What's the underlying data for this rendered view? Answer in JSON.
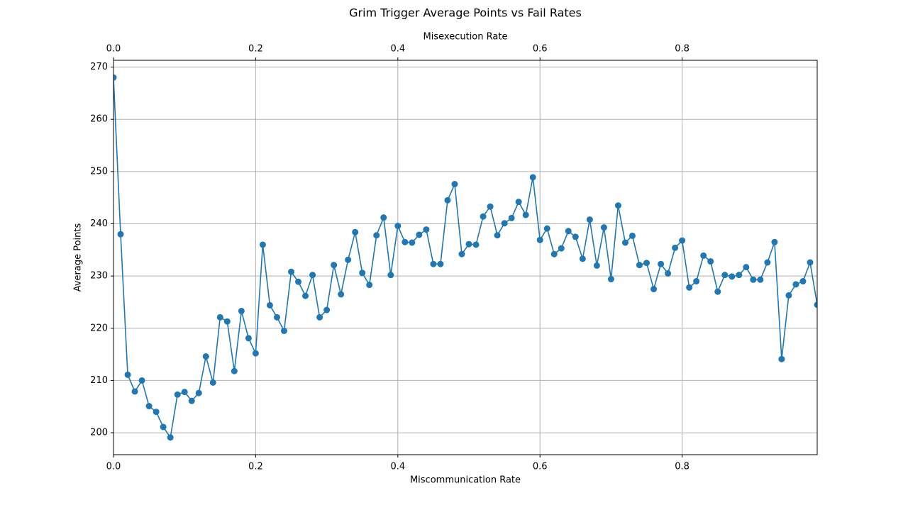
{
  "chart_data": {
    "type": "line",
    "title": "Grim Trigger Average Points vs Fail Rates",
    "xlabel": "Miscommunication Rate",
    "x2label": "Misexecution Rate",
    "ylabel": "Average Points",
    "xlim": [
      0.0,
      0.99
    ],
    "ylim": [
      195.8,
      271.3
    ],
    "x_ticks": [
      0.0,
      0.2,
      0.4,
      0.6,
      0.8
    ],
    "x_tick_labels": [
      "0.0",
      "0.2",
      "0.4",
      "0.6",
      "0.8"
    ],
    "x2_ticks": [
      0.0,
      0.2,
      0.4,
      0.6,
      0.8
    ],
    "x2_tick_labels": [
      "0.0",
      "0.2",
      "0.4",
      "0.6",
      "0.8"
    ],
    "y_ticks": [
      200,
      210,
      220,
      230,
      240,
      250,
      260,
      270
    ],
    "y_tick_labels": [
      "200",
      "210",
      "220",
      "230",
      "240",
      "250",
      "260",
      "270"
    ],
    "grid": true,
    "series": [
      {
        "color": "#1f77b4",
        "marker": "circle",
        "x": [
          0.0,
          0.01,
          0.02,
          0.03,
          0.04,
          0.05,
          0.06,
          0.07,
          0.08,
          0.09,
          0.1,
          0.11,
          0.12,
          0.13,
          0.14,
          0.15,
          0.16,
          0.17,
          0.18,
          0.19,
          0.2,
          0.21,
          0.22,
          0.23,
          0.24,
          0.25,
          0.26,
          0.27,
          0.28,
          0.29,
          0.3,
          0.31,
          0.32,
          0.33,
          0.34,
          0.35,
          0.36,
          0.37,
          0.38,
          0.39,
          0.4,
          0.41,
          0.42,
          0.43,
          0.44,
          0.45,
          0.46,
          0.47,
          0.48,
          0.49,
          0.5,
          0.51,
          0.52,
          0.53,
          0.54,
          0.55,
          0.56,
          0.57,
          0.58,
          0.59,
          0.6,
          0.61,
          0.62,
          0.63,
          0.64,
          0.65,
          0.66,
          0.67,
          0.68,
          0.69,
          0.7,
          0.71,
          0.72,
          0.73,
          0.74,
          0.75,
          0.76,
          0.77,
          0.78,
          0.79,
          0.8,
          0.81,
          0.82,
          0.83,
          0.84,
          0.85,
          0.86,
          0.87,
          0.88,
          0.89,
          0.9,
          0.91,
          0.92,
          0.93,
          0.94,
          0.95,
          0.96,
          0.97,
          0.98,
          0.99
        ],
        "y": [
          268.0,
          238.0,
          211.1,
          207.9,
          210.0,
          205.1,
          204.0,
          201.1,
          199.1,
          207.3,
          207.8,
          206.1,
          207.6,
          214.6,
          209.6,
          222.1,
          221.3,
          211.8,
          223.3,
          218.1,
          215.2,
          236.0,
          224.4,
          222.1,
          219.5,
          230.8,
          228.9,
          226.2,
          230.2,
          222.1,
          223.5,
          232.1,
          226.5,
          233.1,
          238.4,
          230.6,
          228.3,
          237.8,
          241.2,
          230.2,
          239.6,
          236.5,
          236.4,
          237.9,
          238.9,
          232.3,
          232.3,
          244.5,
          247.6,
          234.2,
          236.1,
          236.0,
          241.4,
          243.3,
          237.8,
          240.1,
          241.1,
          244.2,
          241.7,
          248.9,
          236.9,
          239.1,
          234.2,
          235.3,
          238.6,
          237.5,
          233.3,
          240.8,
          232.0,
          239.3,
          229.4,
          243.5,
          236.4,
          237.7,
          232.1,
          232.5,
          227.5,
          232.3,
          230.5,
          235.4,
          236.8,
          227.8,
          229.0,
          233.9,
          232.8,
          227.0,
          230.2,
          229.9,
          230.2,
          231.7,
          229.3,
          229.3,
          232.6,
          236.5,
          214.1,
          226.3,
          228.4,
          229.0,
          232.6,
          224.5
        ]
      }
    ]
  }
}
